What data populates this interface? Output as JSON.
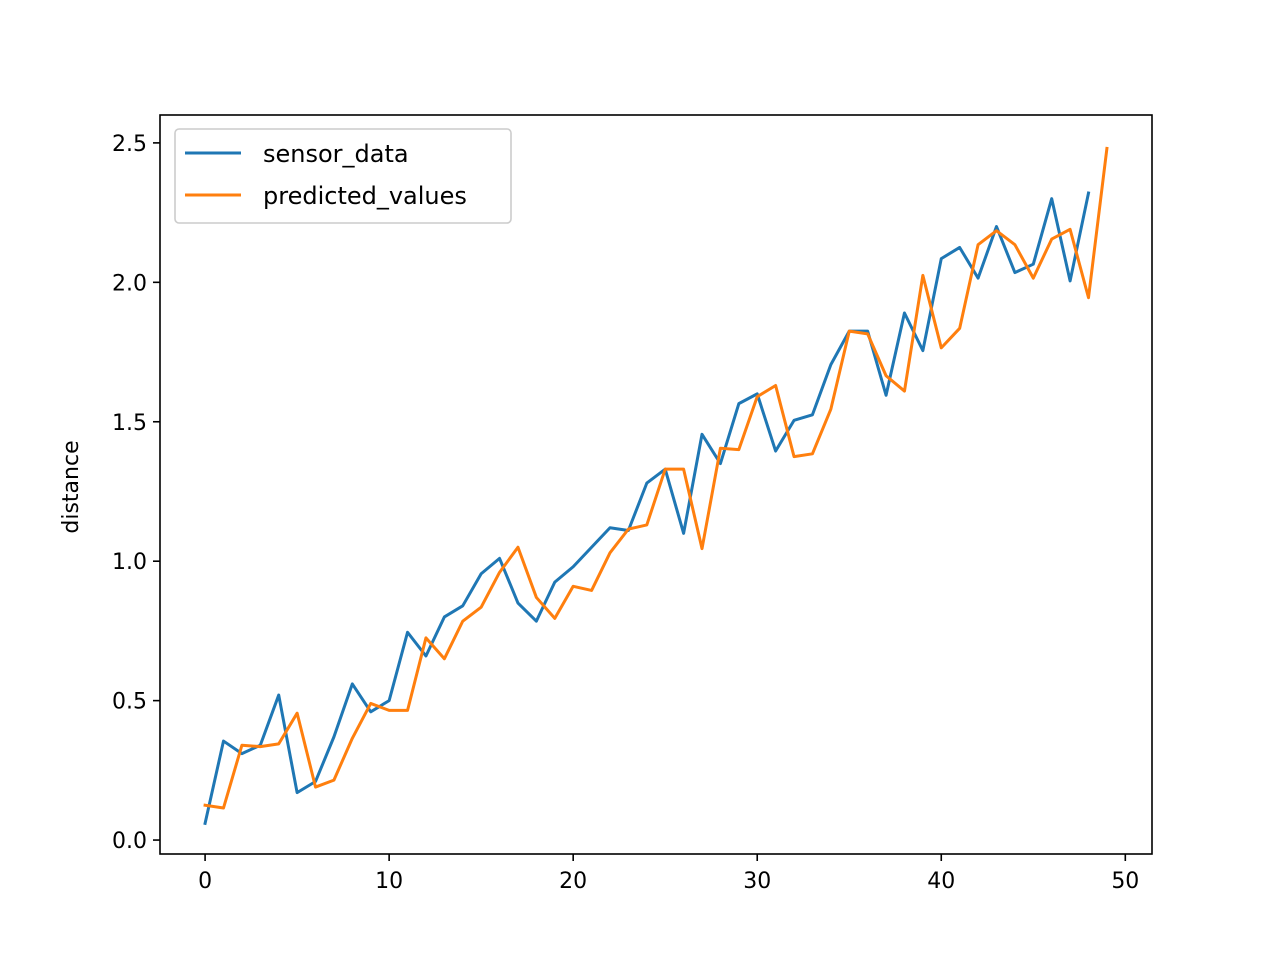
{
  "chart_data": {
    "type": "line",
    "title": "",
    "xlabel": "",
    "ylabel": "distance",
    "xlim": [
      -2.45,
      51.45
    ],
    "ylim": [
      -0.05,
      2.6
    ],
    "xticks": [
      0,
      10,
      20,
      30,
      40,
      50
    ],
    "yticks": [
      0.0,
      0.5,
      1.0,
      1.5,
      2.0,
      2.5
    ],
    "xtick_labels": [
      "0",
      "10",
      "20",
      "30",
      "40",
      "50"
    ],
    "ytick_labels": [
      "0.0",
      "0.5",
      "1.0",
      "1.5",
      "2.0",
      "2.5"
    ],
    "grid": false,
    "legend_position": "top-left",
    "series": [
      {
        "name": "sensor_data",
        "color": "#1f77b4",
        "x": [
          0,
          1,
          2,
          3,
          4,
          5,
          6,
          7,
          8,
          9,
          10,
          11,
          12,
          13,
          14,
          15,
          16,
          17,
          18,
          19,
          20,
          21,
          22,
          23,
          24,
          25,
          26,
          27,
          28,
          29,
          30,
          31,
          32,
          33,
          34,
          35,
          36,
          37,
          38,
          39,
          40,
          41,
          42,
          43,
          44,
          45,
          46,
          47,
          48
        ],
        "values": [
          0.06,
          0.355,
          0.31,
          0.34,
          0.52,
          0.17,
          0.21,
          0.37,
          0.56,
          0.46,
          0.5,
          0.745,
          0.66,
          0.8,
          0.84,
          0.955,
          1.01,
          0.85,
          0.785,
          0.925,
          0.98,
          1.05,
          1.12,
          1.11,
          1.28,
          1.33,
          1.1,
          1.455,
          1.35,
          1.565,
          1.6,
          1.395,
          1.505,
          1.525,
          1.705,
          1.825,
          1.825,
          1.595,
          1.89,
          1.755,
          2.085,
          2.125,
          2.015,
          2.2,
          2.035,
          2.065,
          2.3,
          2.005,
          2.32
        ]
      },
      {
        "name": "predicted_values",
        "color": "#ff7f0e",
        "x": [
          0,
          1,
          2,
          3,
          4,
          5,
          6,
          7,
          8,
          9,
          10,
          11,
          12,
          13,
          14,
          15,
          16,
          17,
          18,
          19,
          20,
          21,
          22,
          23,
          24,
          25,
          26,
          27,
          28,
          29,
          30,
          31,
          32,
          33,
          34,
          35,
          36,
          37,
          38,
          39,
          40,
          41,
          42,
          43,
          44,
          45,
          46,
          47,
          48,
          49
        ],
        "values": [
          0.125,
          0.115,
          0.34,
          0.335,
          0.345,
          0.455,
          0.19,
          0.215,
          0.365,
          0.49,
          0.465,
          0.465,
          0.725,
          0.65,
          0.785,
          0.835,
          0.96,
          1.05,
          0.87,
          0.795,
          0.91,
          0.895,
          1.03,
          1.115,
          1.13,
          1.33,
          1.33,
          1.045,
          1.405,
          1.4,
          1.59,
          1.63,
          1.375,
          1.385,
          1.545,
          1.825,
          1.815,
          1.665,
          1.61,
          2.025,
          1.765,
          1.835,
          2.135,
          2.185,
          2.135,
          2.015,
          2.155,
          2.19,
          1.945,
          2.48
        ]
      }
    ]
  }
}
